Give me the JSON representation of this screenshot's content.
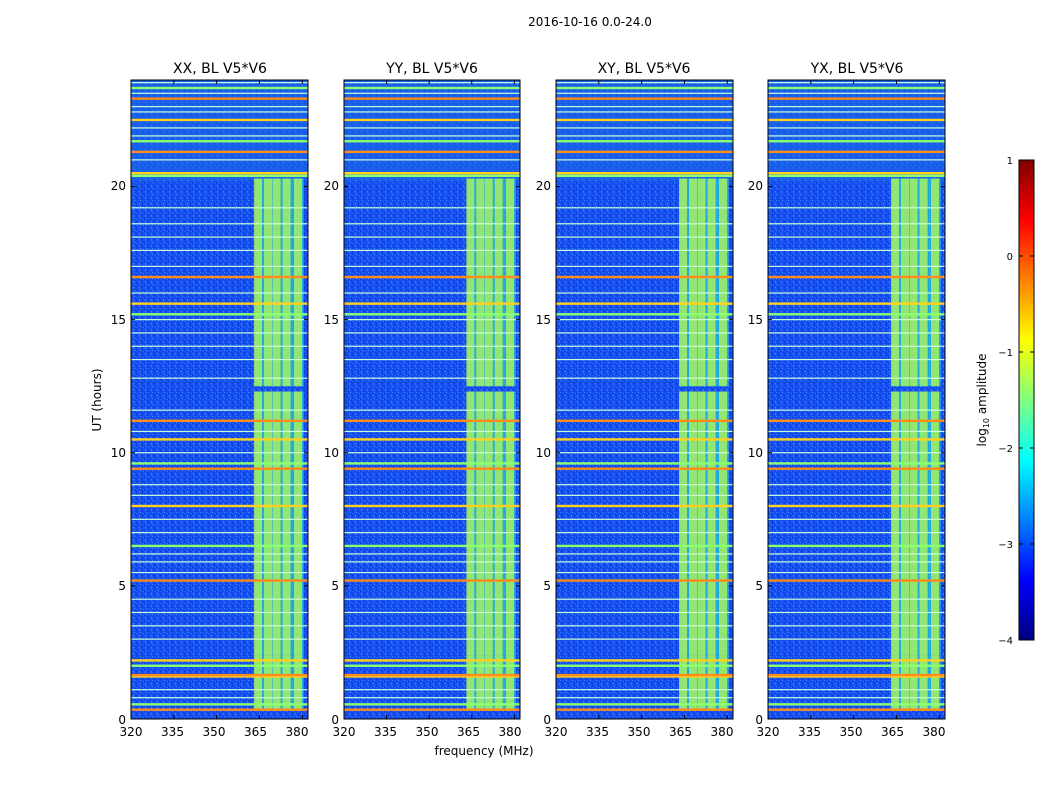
{
  "figure": {
    "suptitle": "2016-10-16 0.0-24.0"
  },
  "chart_data": [
    {
      "type": "heatmap",
      "title": "XX, BL V5*V6",
      "xlabel": "frequency (MHz)",
      "ylabel": "UT (hours)",
      "xlim": [
        320,
        382
      ],
      "ylim": [
        0,
        24
      ],
      "xticks": [
        "320",
        "335",
        "350",
        "365",
        "380"
      ],
      "yticks": [
        "0",
        "5",
        "10",
        "15",
        "20"
      ]
    },
    {
      "type": "heatmap",
      "title": "YY, BL V5*V6",
      "xlabel": "frequency (MHz)",
      "ylabel": "UT (hours)",
      "xlim": [
        320,
        382
      ],
      "ylim": [
        0,
        24
      ],
      "xticks": [
        "320",
        "335",
        "350",
        "365",
        "380"
      ],
      "yticks": [
        "0",
        "5",
        "10",
        "15",
        "20"
      ]
    },
    {
      "type": "heatmap",
      "title": "XY, BL V5*V6",
      "xlabel": "frequency (MHz)",
      "ylabel": "UT (hours)",
      "xlim": [
        320,
        382
      ],
      "ylim": [
        0,
        24
      ],
      "xticks": [
        "320",
        "335",
        "350",
        "365",
        "380"
      ],
      "yticks": [
        "0",
        "5",
        "10",
        "15",
        "20"
      ]
    },
    {
      "type": "heatmap",
      "title": "YX, BL V5*V6",
      "xlabel": "frequency (MHz)",
      "ylabel": "UT (hours)",
      "xlim": [
        320,
        382
      ],
      "ylim": [
        0,
        24
      ],
      "xticks": [
        "320",
        "335",
        "350",
        "365",
        "380"
      ],
      "yticks": [
        "0",
        "5",
        "10",
        "15",
        "20"
      ]
    }
  ],
  "shared": {
    "xlabel": "frequency (MHz)",
    "ylabel": "UT (hours)",
    "rfi_band_mhz": [
      363.5,
      380.5
    ],
    "rfi_channels_mhz": [
      364.5,
      368,
      371,
      374.5,
      378.5
    ],
    "rfi_active_hours": [
      [
        0.3,
        2.4
      ],
      [
        2.4,
        12.3
      ],
      [
        12.5,
        20.3
      ]
    ],
    "bright_times_hr": [
      0.35,
      0.55,
      1.6,
      1.65,
      2.0,
      2.2,
      5.2,
      6.5,
      8.0,
      9.4,
      9.6,
      10.5,
      11.2,
      15.2,
      15.6,
      16.6,
      20.4,
      20.5,
      21.3,
      21.7,
      22.5,
      23.3,
      23.7
    ],
    "flag_times_hr": [
      0.8,
      1.1,
      3.0,
      3.5,
      4.0,
      4.5,
      5.5,
      5.9,
      6.2,
      7.0,
      7.5,
      8.4,
      8.8,
      10.0,
      10.8,
      11.6,
      12.8,
      13.5,
      14.0,
      14.5,
      15.0,
      16.0,
      17.0,
      17.6,
      18.1,
      18.6,
      19.2,
      21.0,
      21.9,
      22.2,
      22.8,
      23.0,
      23.5,
      23.9
    ],
    "top_flagged_range_hr": [
      20.2,
      24
    ]
  },
  "colorbar": {
    "label_prefix": "log",
    "label_sub": "10",
    "label_suffix": " amplitude",
    "ticks": [
      "1",
      "0",
      "−1",
      "−2",
      "−3",
      "−4"
    ],
    "values": [
      1,
      0,
      -1,
      -2,
      -3,
      -4
    ],
    "range": [
      -4,
      1
    ],
    "colors": [
      "#7f0000",
      "#ff0000",
      "#ff8000",
      "#ffff00",
      "#80ff80",
      "#00ffff",
      "#0080ff",
      "#0000ff",
      "#00007f"
    ]
  }
}
